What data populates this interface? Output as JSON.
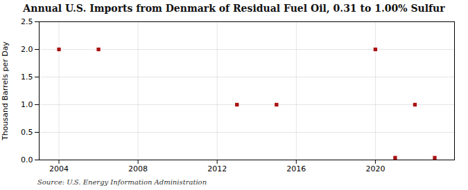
{
  "chart_data": {
    "type": "scatter",
    "title": "Annual U.S. Imports from Denmark of Residual Fuel Oil, 0.31 to 1.00% Sulfur",
    "ylabel": "Thousand Barrels per Day",
    "source": "Source: U.S. Energy Information Administration",
    "x": [
      2004,
      2006,
      2013,
      2015,
      2020,
      2021,
      2022,
      2023
    ],
    "values": [
      2.0,
      2.0,
      1.0,
      1.0,
      2.0,
      0.04,
      1.0,
      0.04
    ],
    "color": "#aa1111",
    "marker": "square",
    "xlim": [
      2003,
      2024
    ],
    "xticks": [
      2004,
      2008,
      2012,
      2016,
      2020
    ],
    "ylim": [
      0,
      2.5
    ],
    "yticks": [
      {
        "value": 0,
        "label": "0.0"
      },
      0.5,
      {
        "value": 1,
        "label": "1.0"
      },
      1.5,
      {
        "value": 2,
        "label": "2.0"
      },
      2.5
    ],
    "grid": true
  }
}
